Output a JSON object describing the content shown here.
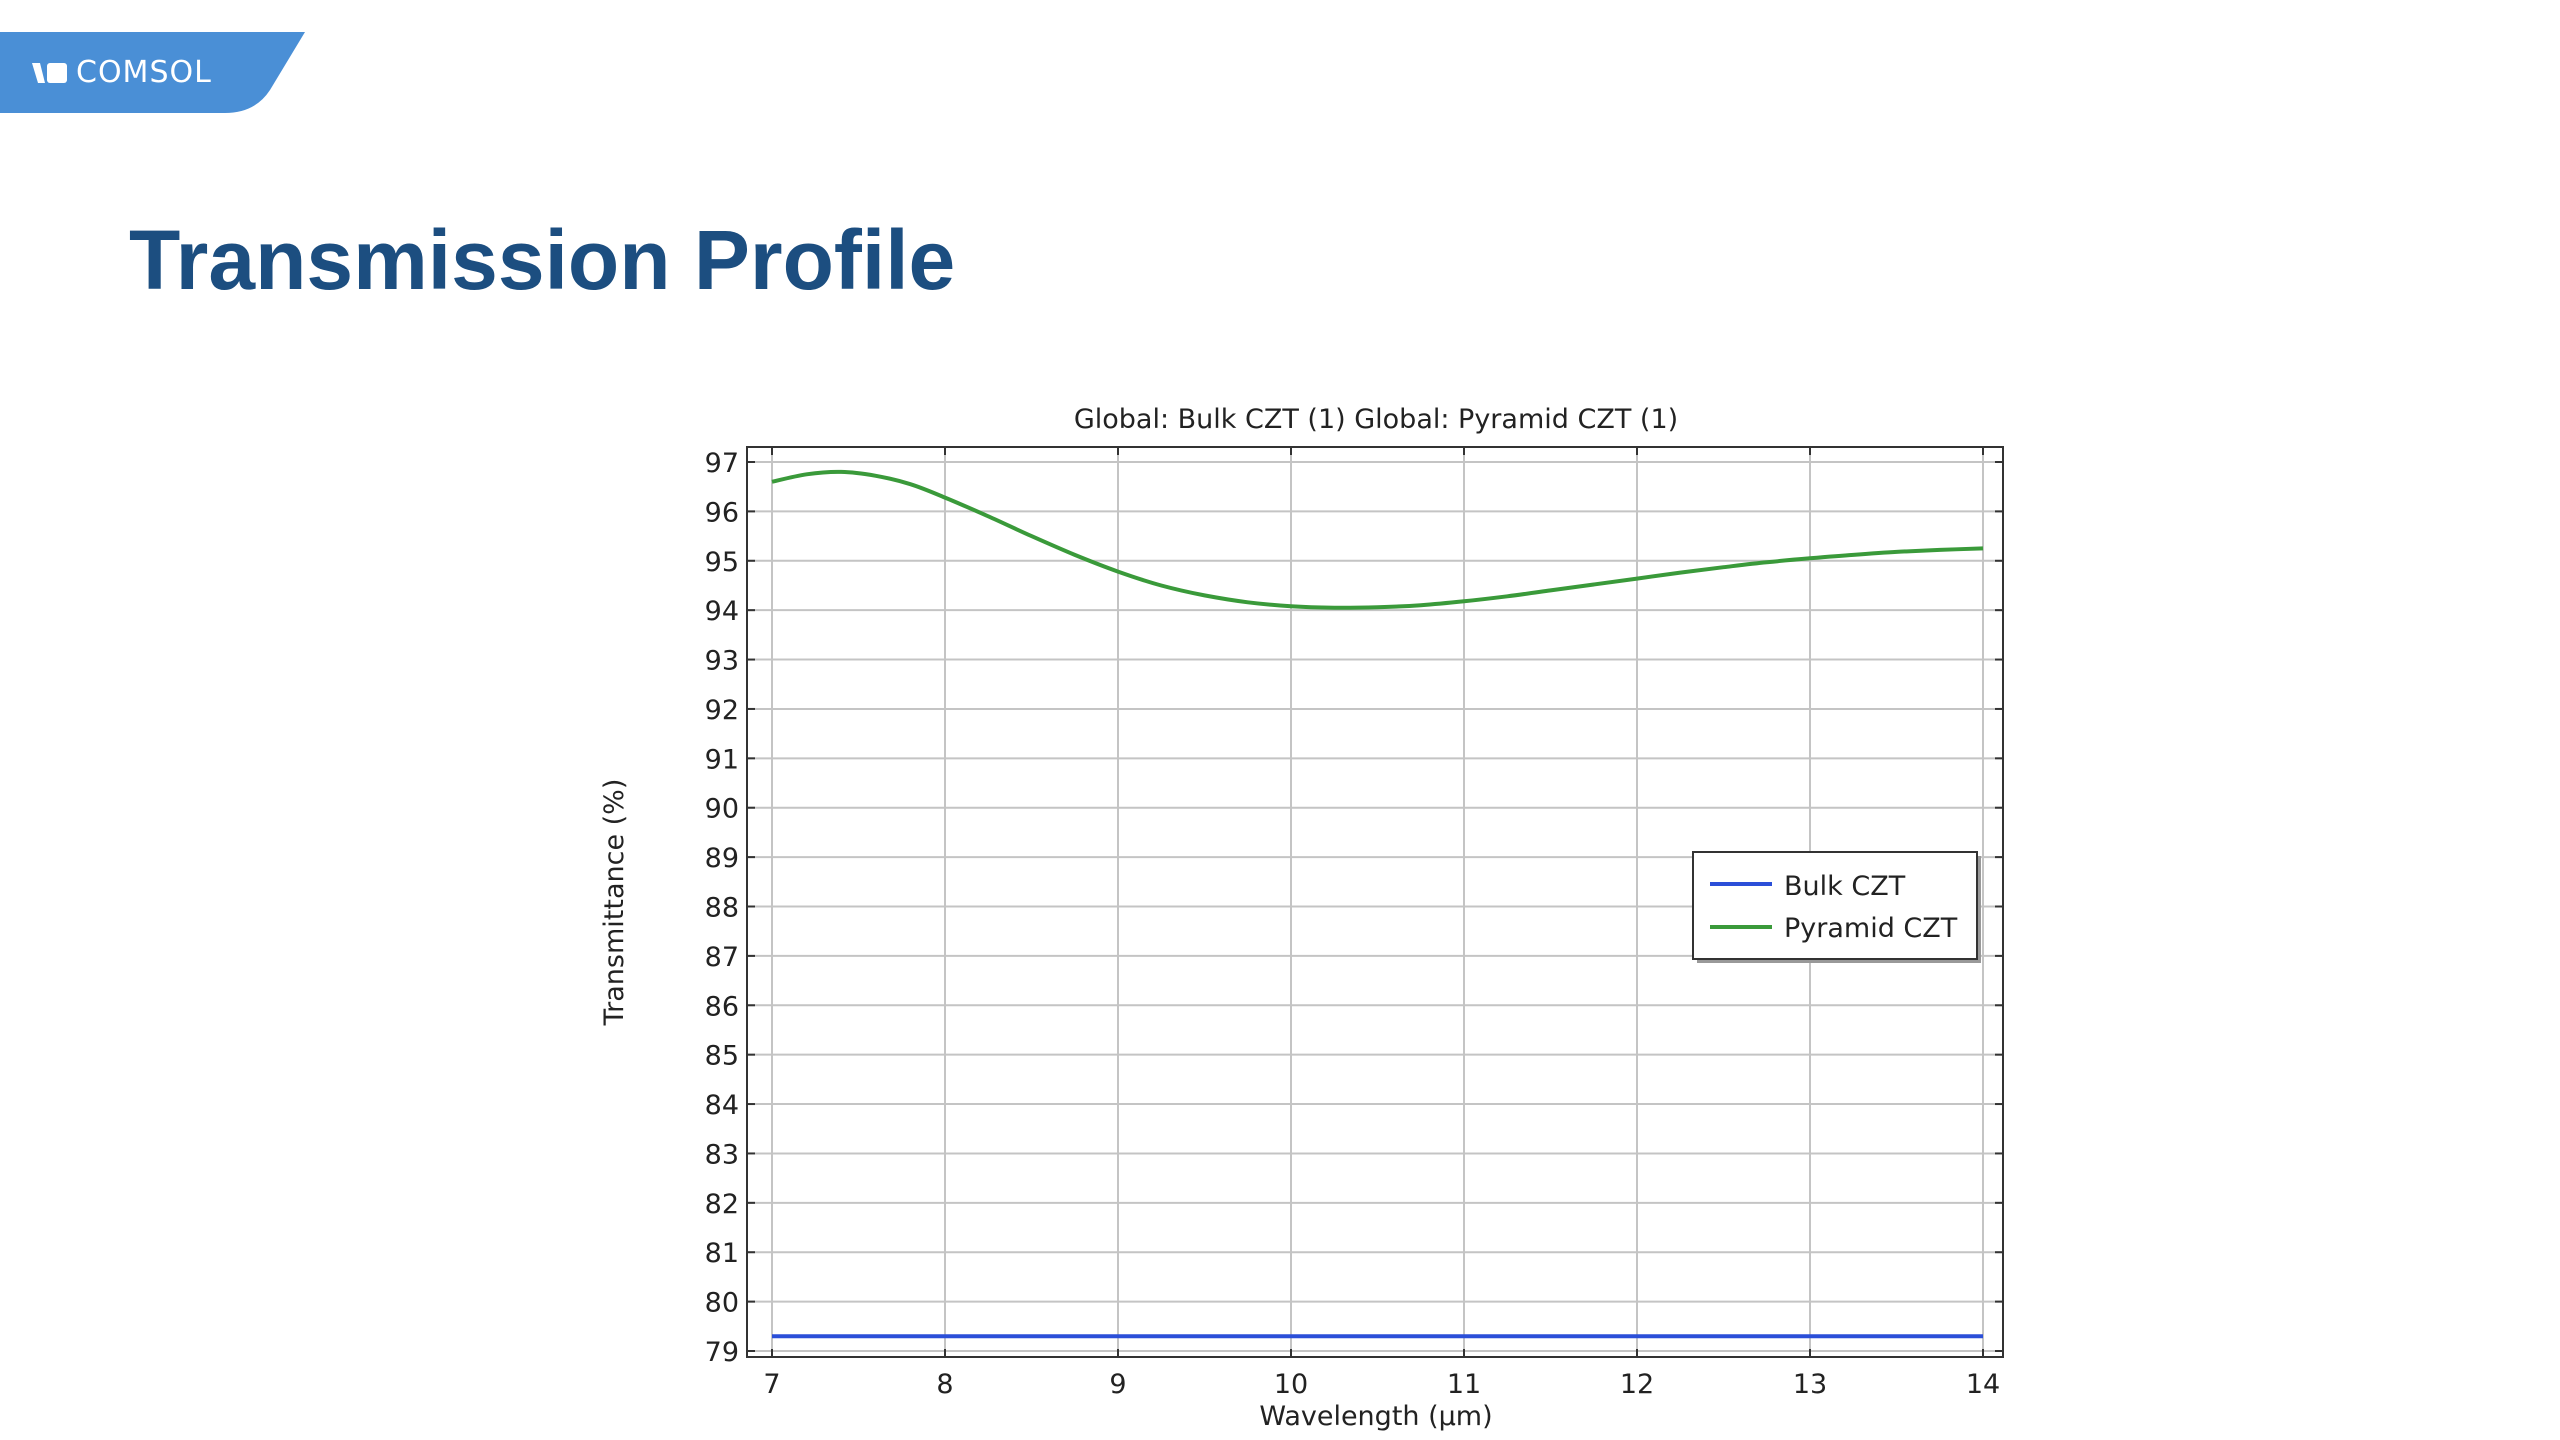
{
  "brand": {
    "logo_text": "COMSOL",
    "color": "#4a8fd6"
  },
  "slide": {
    "title": "Transmission Profile",
    "title_color": "#1c4e80"
  },
  "chart_data": {
    "type": "line",
    "title": "Global: Bulk CZT (1)  Global: Pyramid CZT (1)",
    "xlabel": "Wavelength (µm)",
    "ylabel": "Transmittance (%)",
    "xlim": [
      7,
      14
    ],
    "ylim": [
      79,
      97
    ],
    "xticks": [
      7,
      8,
      9,
      10,
      11,
      12,
      13,
      14
    ],
    "yticks": [
      79,
      80,
      81,
      82,
      83,
      84,
      85,
      86,
      87,
      88,
      89,
      90,
      91,
      92,
      93,
      94,
      95,
      96,
      97
    ],
    "grid": true,
    "legend_position": "right",
    "series": [
      {
        "name": "Bulk CZT",
        "color": "#2b4fd8",
        "x": [
          7,
          8,
          9,
          10,
          11,
          12,
          13,
          14
        ],
        "y": [
          79.3,
          79.3,
          79.3,
          79.3,
          79.3,
          79.3,
          79.3,
          79.3
        ]
      },
      {
        "name": "Pyramid CZT",
        "color": "#3a9a3a",
        "x": [
          7,
          7.2,
          7.4,
          7.6,
          7.8,
          8,
          8.25,
          8.5,
          8.75,
          9,
          9.25,
          9.5,
          9.75,
          10,
          10.25,
          10.5,
          10.75,
          11,
          11.25,
          11.5,
          11.75,
          12,
          12.25,
          12.5,
          12.75,
          13,
          13.25,
          13.5,
          13.75,
          14
        ],
        "y": [
          96.6,
          96.75,
          96.8,
          96.72,
          96.55,
          96.28,
          95.9,
          95.5,
          95.12,
          94.78,
          94.5,
          94.3,
          94.16,
          94.08,
          94.05,
          94.06,
          94.1,
          94.18,
          94.28,
          94.4,
          94.52,
          94.64,
          94.76,
          94.87,
          94.97,
          95.05,
          95.12,
          95.18,
          95.22,
          95.25
        ]
      }
    ]
  }
}
